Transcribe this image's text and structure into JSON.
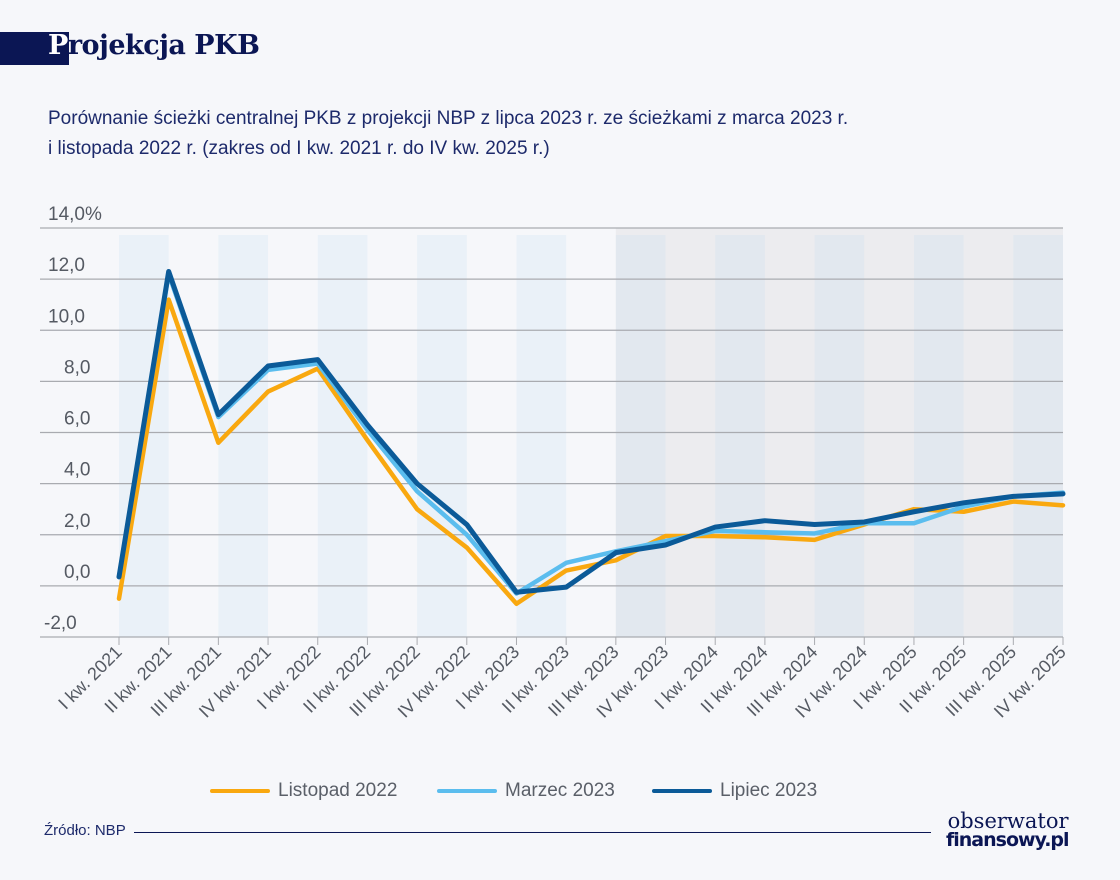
{
  "header": {
    "title": "Projekcja PKB",
    "subtitle_line1": "Porównanie ścieżki centralnej PKB z projekcji NBP z lipca 2023 r. ze ścieżkami z marca 2023 r.",
    "subtitle_line2": "i listopada 2022 r. (zakres od I kw. 2021 r.  do IV kw. 2025 r.)"
  },
  "footer": {
    "source": "Źródło: NBP",
    "logo_line1": "obserwator",
    "logo_line2": "finansowy.pl"
  },
  "chart_data": {
    "type": "line",
    "ylim": [
      -2,
      14
    ],
    "yticks": [
      "14,0%",
      "12,0",
      "10,0",
      "8,0",
      "6,0",
      "4,0",
      "2,0",
      "0,0",
      "-2,0"
    ],
    "ytick_values": [
      14,
      12,
      10,
      8,
      6,
      4,
      2,
      0,
      -2
    ],
    "grid": true,
    "legend": "bottom",
    "projection_shading_from": "III kw. 2023",
    "categories": [
      "I kw. 2021",
      "II kw. 2021",
      "III kw. 2021",
      "IV kw. 2021",
      "I kw. 2022",
      "II kw. 2022",
      "III kw. 2022",
      "IV kw. 2022",
      "I kw. 2023",
      "II kw. 2023",
      "III kw. 2023",
      "IV kw. 2023",
      "I kw. 2024",
      "II kw. 2024",
      "III kw. 2024",
      "IV kw. 2024",
      "I kw. 2025",
      "II kw. 2025",
      "III kw. 2025",
      "IV kw. 2025"
    ],
    "series": [
      {
        "name": "Listopad 2022",
        "color": "#f9a80f",
        "values": [
          -0.5,
          11.2,
          5.6,
          7.6,
          8.5,
          5.7,
          3.0,
          1.5,
          -0.7,
          0.6,
          1.0,
          1.95,
          1.95,
          1.9,
          1.8,
          2.4,
          3.0,
          2.9,
          3.3,
          3.15
        ]
      },
      {
        "name": "Marzec 2023",
        "color": "#5bbdee",
        "values": [
          0.35,
          12.2,
          6.6,
          8.45,
          8.7,
          6.1,
          3.7,
          2.0,
          -0.3,
          0.9,
          1.35,
          1.75,
          2.15,
          2.1,
          2.05,
          2.45,
          2.45,
          3.1,
          3.5,
          3.65
        ]
      },
      {
        "name": "Lipiec 2023",
        "color": "#0b5a98",
        "values": [
          0.35,
          12.3,
          6.7,
          8.6,
          8.85,
          6.3,
          4.0,
          2.4,
          -0.25,
          -0.05,
          1.3,
          1.6,
          2.3,
          2.55,
          2.4,
          2.5,
          2.9,
          3.25,
          3.5,
          3.6
        ]
      }
    ]
  }
}
